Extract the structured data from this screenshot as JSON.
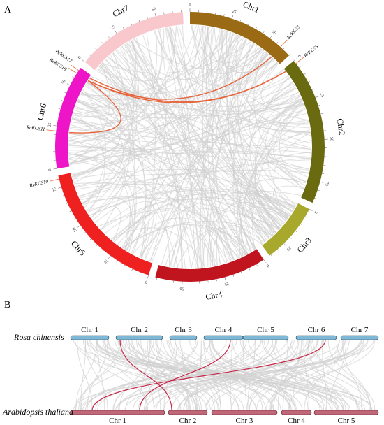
{
  "panel_a": {
    "label": "A",
    "chromosomes": [
      {
        "name": "Chr1",
        "length": 65,
        "color": "#9b6a14",
        "labelColor": "#000000"
      },
      {
        "name": "Chr2",
        "length": 88,
        "color": "#6a6a10",
        "labelColor": "#000000"
      },
      {
        "name": "Chr3",
        "length": 36,
        "color": "#a8a82c",
        "labelColor": "#000000"
      },
      {
        "name": "Chr4",
        "length": 66,
        "color": "#c0141e",
        "labelColor": "#000000"
      },
      {
        "name": "Chr5",
        "length": 82,
        "color": "#ee2020",
        "labelColor": "#000000"
      },
      {
        "name": "Chr6",
        "length": 62,
        "color": "#ee14c8",
        "labelColor": "#000000"
      },
      {
        "name": "Chr7",
        "length": 66,
        "color": "#f8c8cc",
        "labelColor": "#000000"
      }
    ],
    "genes": [
      {
        "name": "RcKCS3",
        "chr": 0,
        "pos": 58
      },
      {
        "name": "RcKCS6",
        "chr": 1,
        "pos": 2
      },
      {
        "name": "RcKCS10",
        "chr": 4,
        "pos": 80
      },
      {
        "name": "RcKCS11",
        "chr": 5,
        "pos": 22
      },
      {
        "name": "RcKCS16",
        "chr": 5,
        "pos": 58
      },
      {
        "name": "RcKCS17",
        "chr": 5,
        "pos": 60
      }
    ],
    "links": [
      [
        0,
        4
      ],
      [
        1,
        5
      ],
      [
        1,
        4
      ],
      [
        3,
        4
      ]
    ]
  },
  "panel_b": {
    "label": "B",
    "top_species": "Rosa chinensis",
    "bottom_species": "Arabidopsis thaliana",
    "top_chrs": [
      "Chr 1",
      "Chr 2",
      "Chr 3",
      "Chr 4",
      "Chr 5",
      "Chr 6",
      "Chr 7"
    ],
    "bottom_chrs": [
      "Chr 1",
      "Chr 2",
      "Chr 3",
      "Chr 4",
      "Chr 5"
    ],
    "top_color": "#7fb8d6",
    "bottom_color": "#c06878"
  }
}
